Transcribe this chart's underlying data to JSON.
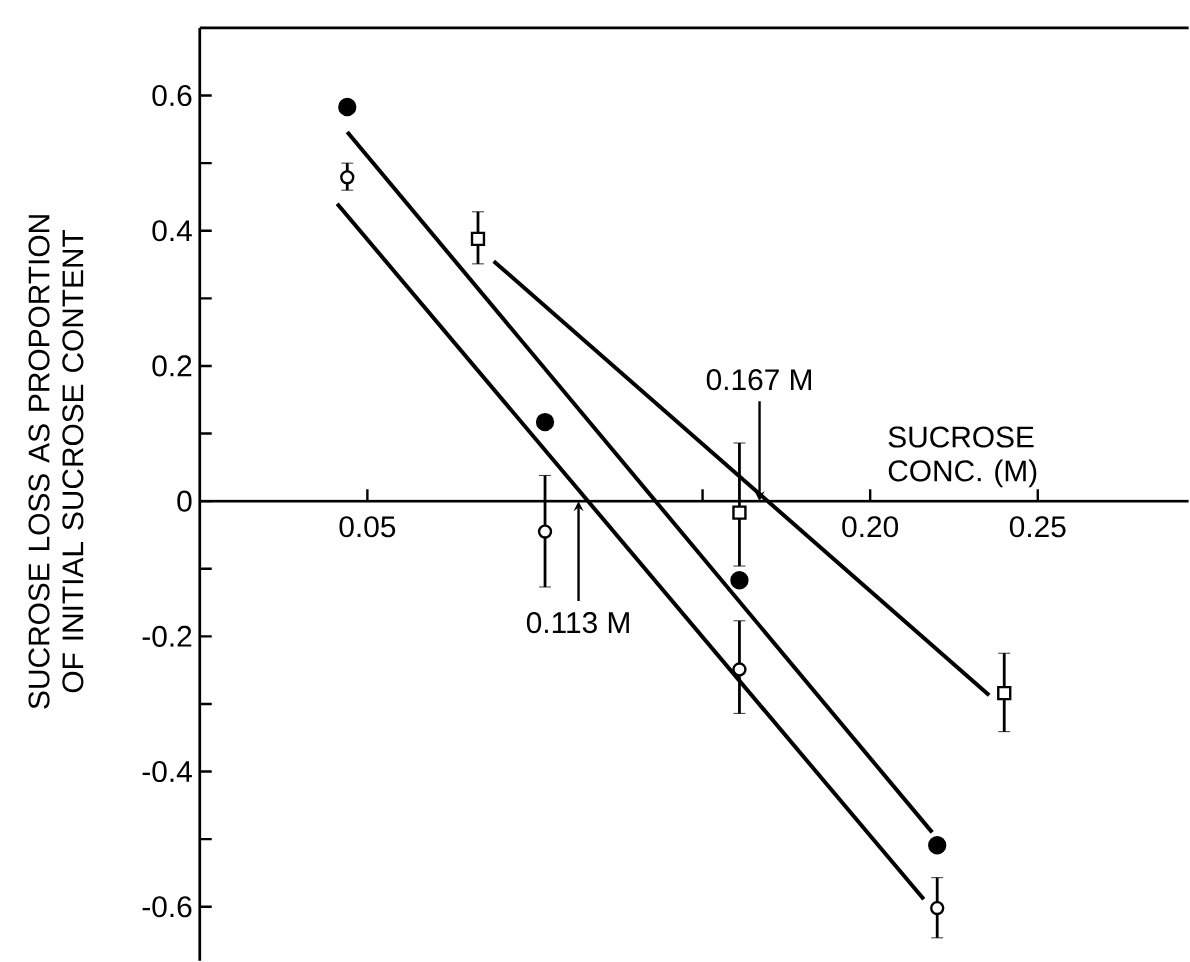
{
  "chart_data": {
    "type": "scatter",
    "xlabel": "SUCROSE CONC. (M)",
    "ylabel": "SUCROSE LOSS AS PROPORTION OF INITIAL SUCROSE CONTENT",
    "xlim": [
      0,
      0.295
    ],
    "ylim": [
      -0.68,
      0.7
    ],
    "xticks": [
      {
        "value": 0.05,
        "label": "0.05"
      },
      {
        "value": 0.15,
        "label": null
      },
      {
        "value": 0.2,
        "label": "0.20"
      },
      {
        "value": 0.25,
        "label": "0.25"
      }
    ],
    "yticks": [
      {
        "value": -0.6,
        "label": "-0.6"
      },
      {
        "value": -0.5,
        "label": null
      },
      {
        "value": -0.4,
        "label": "-0.4"
      },
      {
        "value": -0.3,
        "label": null
      },
      {
        "value": -0.2,
        "label": "-0.2"
      },
      {
        "value": -0.1,
        "label": null
      },
      {
        "value": 0,
        "label": "0"
      },
      {
        "value": 0.1,
        "label": null
      },
      {
        "value": 0.2,
        "label": "0.2"
      },
      {
        "value": 0.3,
        "label": null
      },
      {
        "value": 0.4,
        "label": "0.4"
      },
      {
        "value": 0.5,
        "label": null
      },
      {
        "value": 0.6,
        "label": "0.6"
      }
    ],
    "grid": false,
    "series": [
      {
        "color": "#000000",
        "marker": "circle",
        "x": [
          0.044,
          0.103,
          0.161,
          0.22
        ],
        "values": [
          0.583,
          0.117,
          -0.117,
          -0.509
        ]
      },
      {
        "color": "#000000",
        "marker": "circle",
        "x": [
          0.044,
          0.103,
          0.161,
          0.22
        ],
        "values": [
          0.479,
          -0.045,
          -0.249,
          -0.602
        ],
        "errors": [
          [
            0.46,
            0.5
          ],
          [
            -0.127,
            0.038
          ],
          [
            -0.314,
            -0.177
          ],
          [
            -0.646,
            -0.557
          ]
        ]
      },
      {
        "color": "#000000",
        "marker": "square",
        "x": [
          0.083,
          0.161,
          0.24
        ],
        "values": [
          0.388,
          -0.017,
          -0.284
        ],
        "errors": [
          [
            0.351,
            0.428
          ],
          [
            -0.096,
            0.086
          ],
          [
            -0.341,
            -0.225
          ]
        ]
      },
      {
        "type": "line",
        "color": "#000000",
        "marker": "none",
        "line_style": "solid",
        "x": [
          0.044,
          0.2185
        ],
        "values": [
          0.546,
          -0.49
        ]
      },
      {
        "type": "line",
        "color": "#000000",
        "marker": "none",
        "line_style": "solid",
        "x": [
          0.041,
          0.216
        ],
        "values": [
          0.44,
          -0.589
        ]
      },
      {
        "type": "line",
        "color": "#000000",
        "marker": "none",
        "line_style": "solid",
        "x": [
          0.0877,
          0.2355
        ],
        "values": [
          0.355,
          -0.287
        ]
      }
    ],
    "annotations": [
      {
        "text": "0.167 M",
        "x": 0.167,
        "y": 0
      },
      {
        "text": "0.113 M",
        "x": 0.113,
        "y": 0
      }
    ]
  }
}
